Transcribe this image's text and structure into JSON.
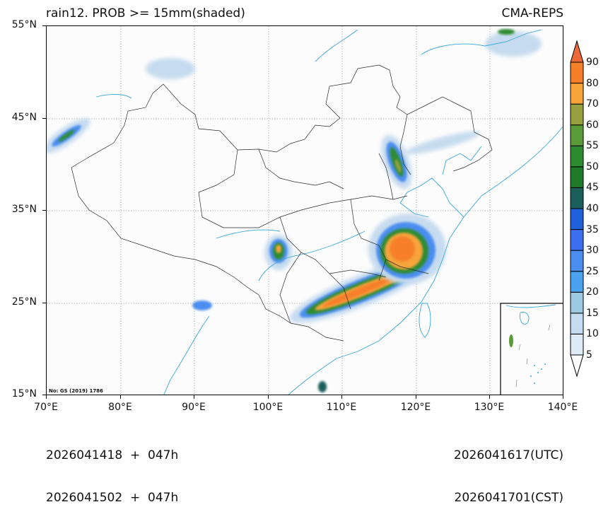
{
  "header": {
    "title_left": "rain12. PROB >= 15mm(shaded)",
    "title_right": "CMA-REPS"
  },
  "map": {
    "extent": {
      "lon_min": 70,
      "lon_max": 140,
      "lat_min": 15,
      "lat_max": 55
    },
    "y_ticks": [
      {
        "label": "55°N",
        "lat": 55
      },
      {
        "label": "45°N",
        "lat": 45
      },
      {
        "label": "35°N",
        "lat": 35
      },
      {
        "label": "25°N",
        "lat": 25
      },
      {
        "label": "15°N",
        "lat": 15
      }
    ],
    "x_ticks": [
      {
        "label": "70°E",
        "lon": 70
      },
      {
        "label": "80°E",
        "lon": 80
      },
      {
        "label": "90°E",
        "lon": 90
      },
      {
        "label": "100°E",
        "lon": 100
      },
      {
        "label": "110°E",
        "lon": 110
      },
      {
        "label": "120°E",
        "lon": 120
      },
      {
        "label": "130°E",
        "lon": 130
      },
      {
        "label": "140°E",
        "lon": 140
      }
    ],
    "gridlines": {
      "style": "dotted",
      "color": "#999999"
    },
    "map_review_number": "No: GS (2019) 1786",
    "inset": "South China Sea inset (lower right)",
    "colors": {
      "coastline": "#3aa8d8",
      "border": "#222222",
      "background": "#fcfcfc"
    },
    "rain_features": [
      {
        "name": "South China band",
        "description": "SW–NE band from ~105°E,25°N to ~115°E,29°N, peak >80%"
      },
      {
        "name": "Lower Yangtze maximum",
        "description": "~115–121°E, 27–33°N, peak 70–90%"
      },
      {
        "name": "North China strip",
        "description": "~115–118°E, 38–42°N, peak 55–70%"
      },
      {
        "name": "Sichuan basin cell",
        "description": "~102–104°E, 28–31°N, peak 70–80%"
      },
      {
        "name": "Central Asia cell",
        "description": "~71–75°E, 41–44°N, peak 50–60%"
      }
    ]
  },
  "colorbar": {
    "levels": [
      "5",
      "10",
      "15",
      "20",
      "25",
      "30",
      "35",
      "40",
      "45",
      "50",
      "55",
      "60",
      "70",
      "80",
      "90"
    ],
    "colors": [
      "#deebf7",
      "#c6dbef",
      "#9ecae1",
      "#4ba3f0",
      "#4c8ef0",
      "#3b6ff0",
      "#2060d8",
      "#1c5e5a",
      "#1f7a2a",
      "#2e8b30",
      "#5a9a38",
      "#96a040",
      "#f6a43a",
      "#f67f2a",
      "#ec6a3a"
    ],
    "extend": "both",
    "under_color": "#ffffff",
    "over_color": "#ec6a3a"
  },
  "footer": {
    "init_utc": "2026041418  +  047h",
    "init_cst": "2026041502  +  047h",
    "valid_utc": "2026041617(UTC)",
    "valid_cst": "2026041701(CST)"
  }
}
